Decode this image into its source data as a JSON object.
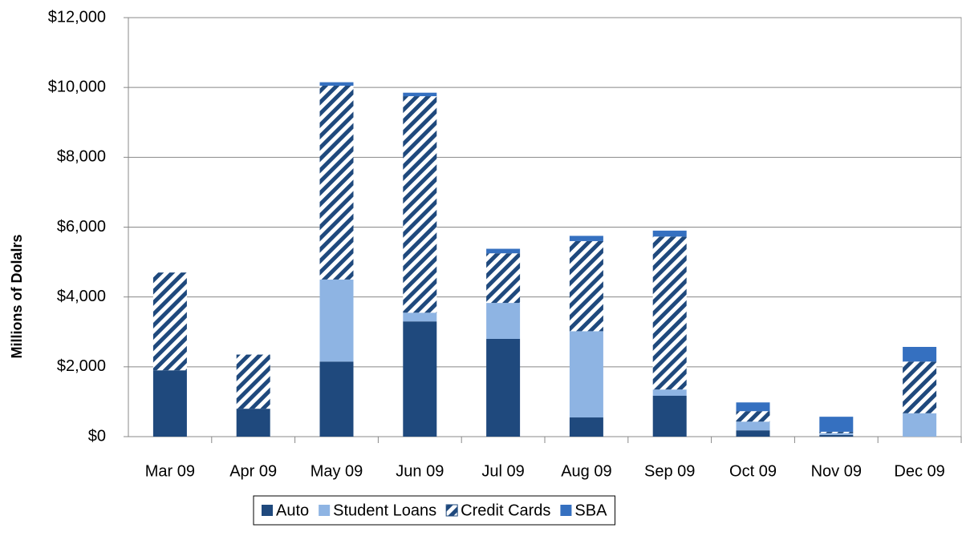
{
  "chart_data": {
    "type": "stacked_bar",
    "y_label": "Millions of Dolalrs",
    "categories": [
      "Mar 09",
      "Apr 09",
      "May 09",
      "Jun 09",
      "Jul 09",
      "Aug 09",
      "Sep 09",
      "Oct 09",
      "Nov 09",
      "Dec 09"
    ],
    "series": [
      {
        "name": "Auto",
        "color": "#1f497d",
        "values": [
          1900,
          800,
          2150,
          3300,
          2800,
          550,
          1170,
          180,
          50,
          0
        ]
      },
      {
        "name": "Student Loans",
        "color": "#8eb4e3",
        "values": [
          0,
          0,
          2350,
          250,
          1030,
          2470,
          180,
          250,
          50,
          670
        ]
      },
      {
        "name": "Credit Cards",
        "color": "#1f497d",
        "pattern": "diagonal",
        "values": [
          2800,
          1550,
          5550,
          6200,
          1420,
          2580,
          4380,
          300,
          40,
          1480
        ]
      },
      {
        "name": "SBA",
        "color": "#3570c0",
        "values": [
          0,
          0,
          100,
          100,
          130,
          150,
          170,
          250,
          430,
          420
        ]
      }
    ],
    "ylim": [
      0,
      12000
    ],
    "yticks": [
      {
        "value": 0,
        "label": "$0"
      },
      {
        "value": 2000,
        "label": "$2,000"
      },
      {
        "value": 4000,
        "label": "$4,000"
      },
      {
        "value": 6000,
        "label": "$6,000"
      },
      {
        "value": 8000,
        "label": "$8,000"
      },
      {
        "value": 10000,
        "label": "$10,000"
      },
      {
        "value": 12000,
        "label": "$12,000"
      }
    ],
    "grid": true,
    "legend": "bottom"
  }
}
